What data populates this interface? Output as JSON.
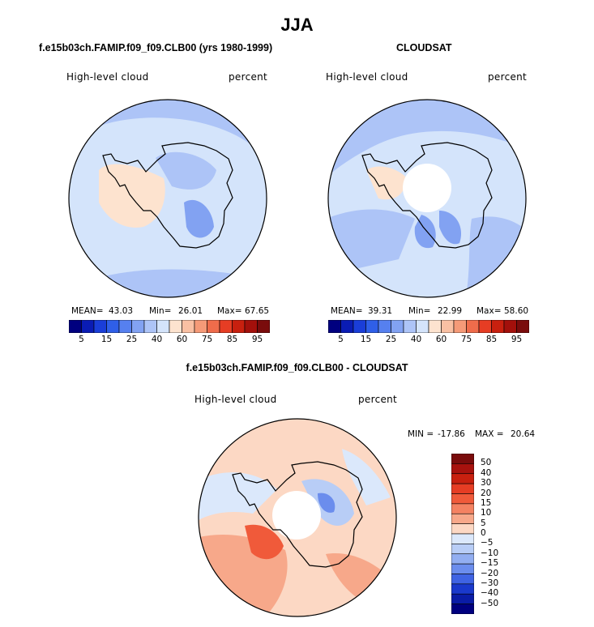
{
  "figure": {
    "title": "JJA"
  },
  "chart_data": [
    {
      "type": "polar-contour-map",
      "title": "f.e15b03ch.FAMIP.f09_f09.CLB00 (yrs 1980-1999)",
      "variable": "High-level cloud",
      "units": "percent",
      "stats": {
        "mean_label": "MEAN=",
        "mean": "43.03",
        "min_label": "Min=",
        "min": "26.01",
        "max_label": "Max=",
        "max": "67.65"
      },
      "colorbar": {
        "labels": [
          "5",
          "15",
          "25",
          "40",
          "60",
          "75",
          "85",
          "95"
        ],
        "colors": [
          "#00007f",
          "#0a1cb4",
          "#1a3ed8",
          "#2f5fe8",
          "#5680ef",
          "#82a2f2",
          "#adc4f7",
          "#d4e4fb",
          "#fde3cf",
          "#f9c0a3",
          "#f59a78",
          "#ef6c4b",
          "#e63d24",
          "#c8200f",
          "#a3100b",
          "#7a0c0c"
        ]
      }
    },
    {
      "type": "polar-contour-map",
      "title": "CLOUDSAT",
      "variable": "High-level cloud",
      "units": "percent",
      "stats": {
        "mean_label": "MEAN=",
        "mean": "39.31",
        "min_label": "Min=",
        "min": "22.99",
        "max_label": "Max=",
        "max": "58.60"
      },
      "colorbar": {
        "labels": [
          "5",
          "15",
          "25",
          "40",
          "60",
          "75",
          "85",
          "95"
        ],
        "colors": [
          "#00007f",
          "#0a1cb4",
          "#1a3ed8",
          "#2f5fe8",
          "#5680ef",
          "#82a2f2",
          "#adc4f7",
          "#d4e4fb",
          "#fde3cf",
          "#f9c0a3",
          "#f59a78",
          "#ef6c4b",
          "#e63d24",
          "#c8200f",
          "#a3100b",
          "#7a0c0c"
        ]
      }
    },
    {
      "type": "polar-contour-map",
      "title": "f.e15b03ch.FAMIP.f09_f09.CLB00 - CLOUDSAT",
      "variable": "High-level cloud",
      "units": "percent",
      "stats": {
        "min_label": "MIN =",
        "min": "-17.86",
        "max_label": "MAX =",
        "max": "20.64"
      },
      "colorbar": {
        "labels": [
          "50",
          "40",
          "30",
          "20",
          "15",
          "10",
          "5",
          "0",
          "−5",
          "−10",
          "−15",
          "−20",
          "−30",
          "−40",
          "−50"
        ],
        "colors": [
          "#7a0c0c",
          "#a8120e",
          "#c8200f",
          "#e63d24",
          "#f05a3a",
          "#f48262",
          "#f7a88a",
          "#fcd8c4",
          "#dbe8fb",
          "#b8cdf6",
          "#92aef1",
          "#6b8ded",
          "#3f63e3",
          "#1a39cc",
          "#0a1ca6",
          "#00007f"
        ]
      }
    }
  ]
}
